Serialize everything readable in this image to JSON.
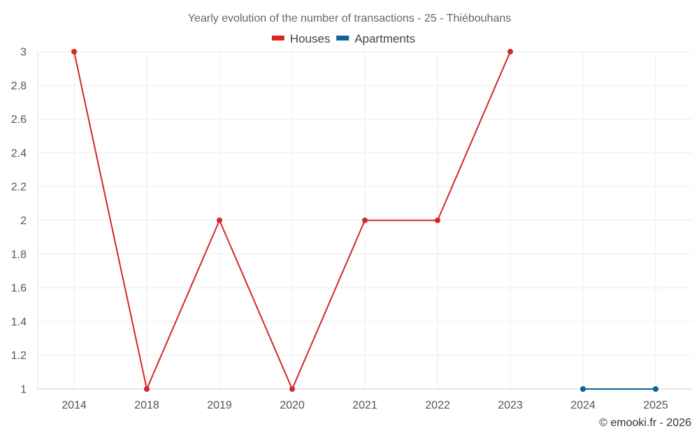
{
  "chart_data": {
    "type": "line",
    "title": "Yearly evolution of the number of transactions - 25 - Thiébouhans",
    "categories": [
      "2014",
      "2018",
      "2019",
      "2020",
      "2021",
      "2022",
      "2023",
      "2024",
      "2025"
    ],
    "series": [
      {
        "name": "Houses",
        "color": "#d62728",
        "values": [
          3,
          1,
          2,
          1,
          2,
          2,
          3,
          null,
          null
        ]
      },
      {
        "name": "Apartments",
        "color": "#0e6199",
        "values": [
          null,
          null,
          null,
          null,
          null,
          null,
          null,
          1,
          1
        ]
      }
    ],
    "ylim": [
      1,
      3
    ],
    "yticks": [
      "1",
      "1.2",
      "1.4",
      "1.6",
      "1.8",
      "2",
      "2.2",
      "2.4",
      "2.6",
      "2.8",
      "3"
    ],
    "grid": true,
    "legend": "top-center"
  },
  "credit": "© emooki.fr - 2026"
}
